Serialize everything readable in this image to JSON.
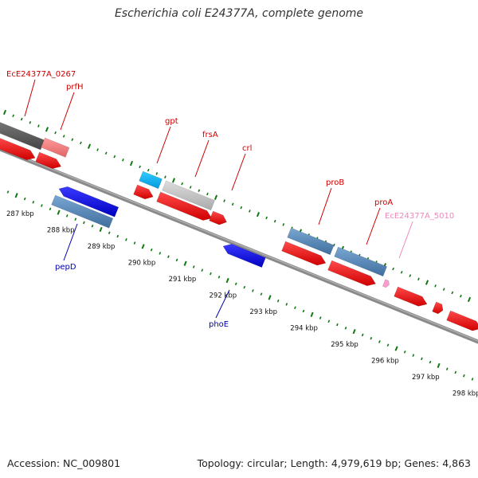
{
  "title": "Escherichia coli E24377A, complete genome",
  "footer": {
    "accession": "Accession: NC_009801",
    "summary": "Topology: circular; Length: 4,979,619 bp; Genes: 4,863"
  },
  "colors": {
    "forward_gene": "#ff0000",
    "reverse_gene": "#0000ff",
    "forward_label": "#cc0000",
    "reverse_label": "#0000aa",
    "pseudo_label": "#ee88bb",
    "tick": "#117711",
    "backbone": "#888888"
  },
  "kbp_labels": [
    "287 kbp",
    "288 kbp",
    "289 kbp",
    "290 kbp",
    "291 kbp",
    "292 kbp",
    "293 kbp",
    "294 kbp",
    "295 kbp",
    "296 kbp",
    "297 kbp",
    "298 kbp"
  ],
  "gene_labels": [
    {
      "text": "EcE24377A_0267",
      "strand": "forward"
    },
    {
      "text": "prfH",
      "strand": "forward"
    },
    {
      "text": "gpt",
      "strand": "forward"
    },
    {
      "text": "frsA",
      "strand": "forward"
    },
    {
      "text": "crl",
      "strand": "forward"
    },
    {
      "text": "proB",
      "strand": "forward"
    },
    {
      "text": "proA",
      "strand": "forward"
    },
    {
      "text": "EcE24377A_5010",
      "strand": "pseudo"
    },
    {
      "text": "pepD",
      "strand": "reverse"
    },
    {
      "text": "phoE",
      "strand": "reverse"
    }
  ]
}
